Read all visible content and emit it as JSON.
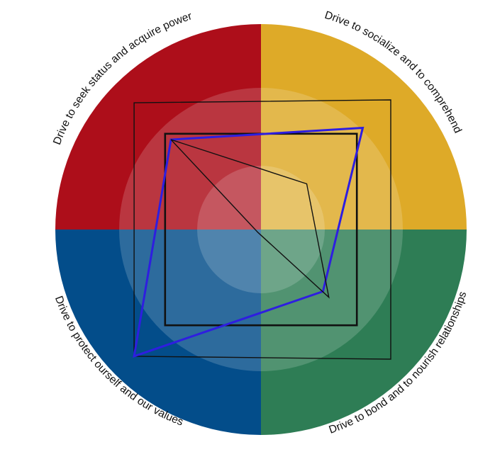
{
  "diagram": {
    "type": "radar-quadrant-wheel",
    "quadrants": [
      {
        "id": "power",
        "label": "Drive to seek status and acquire power",
        "color": "#ad0e1a"
      },
      {
        "id": "social",
        "label": "Drive to socialize and to comprehend",
        "color": "#deaa28"
      },
      {
        "id": "bond",
        "label": "Drive to bond and to nourish relationships",
        "color": "#2e7d55"
      },
      {
        "id": "protect",
        "label": "Drive to protect ourself and our values",
        "color": "#034d8a"
      }
    ],
    "ring_overlay_color": "#ffffff",
    "profiles": [
      {
        "id": "profile-outer",
        "color": "#111111",
        "values": {
          "power": 0.86,
          "social": 0.88,
          "bond": 0.88,
          "protect": 0.86
        }
      },
      {
        "id": "profile-middle",
        "color": "#111111",
        "values": {
          "power": 0.65,
          "social": 0.65,
          "bond": 0.65,
          "protect": 0.65
        }
      },
      {
        "id": "profile-highlight",
        "color": "#2e1ee0",
        "values": {
          "power": 0.61,
          "social": 0.69,
          "bond": 0.42,
          "protect": 0.86
        }
      },
      {
        "id": "profile-inner",
        "color": "#111111",
        "values": {
          "power": 0.61,
          "social": 0.31,
          "bond": 0.46,
          "protect": 0.02
        }
      }
    ]
  }
}
